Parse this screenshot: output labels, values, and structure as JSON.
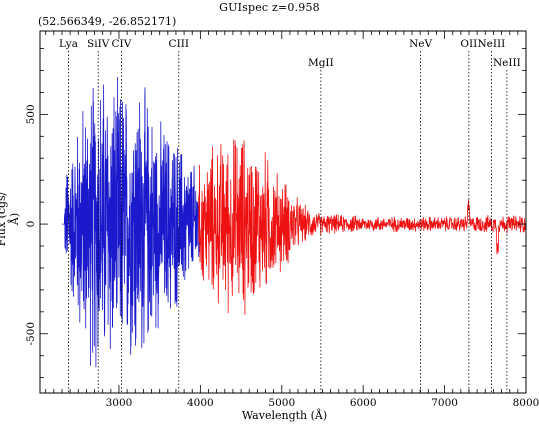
{
  "app": {
    "title": "GUIspec z=0.958",
    "coordinates": "(52.566349, -26.852171)"
  },
  "chart_data": {
    "type": "line",
    "title": "GUIspec z=0.958",
    "xlabel": "Wavelength (Å)",
    "ylabel": "Flux (cgs/Å)",
    "xlim": [
      2030,
      8000
    ],
    "ylim": [
      -770,
      880
    ],
    "x_ticks": [
      3000,
      4000,
      5000,
      6000,
      7000,
      8000
    ],
    "y_ticks": [
      -500,
      0,
      500
    ],
    "colors": {
      "blue_series": "#1a1acc",
      "red_series": "#ee1111",
      "axes": "#000000"
    },
    "series": [
      {
        "color_key": "blue_series",
        "x": [
          2330,
          2380,
          2450,
          2520,
          2600,
          2680,
          2750,
          2820,
          2900,
          2980,
          3050,
          3130,
          3200,
          3300,
          3400,
          3500,
          3600,
          3700,
          3800,
          3900,
          4000
        ],
        "amplitude": [
          150,
          400,
          420,
          600,
          650,
          750,
          780,
          780,
          780,
          700,
          760,
          650,
          780,
          700,
          600,
          520,
          500,
          450,
          380,
          320,
          260
        ]
      },
      {
        "color_key": "red_series",
        "x": [
          3980,
          4100,
          4200,
          4300,
          4400,
          4500,
          4600,
          4700,
          4800,
          4900,
          5000,
          5100,
          5200,
          5300,
          5400,
          5500,
          6000,
          6500,
          7000,
          7500,
          8000
        ],
        "amplitude": [
          300,
          380,
          420,
          450,
          460,
          500,
          440,
          400,
          380,
          300,
          250,
          200,
          130,
          90,
          70,
          55,
          40,
          40,
          40,
          45,
          50
        ]
      }
    ],
    "emission_lines": [
      {
        "label": "Lya",
        "x": 2380,
        "row": 1
      },
      {
        "label": "SiIV",
        "x": 2745,
        "row": 1
      },
      {
        "label": "CIV",
        "x": 3030,
        "row": 1
      },
      {
        "label": "CIII",
        "x": 3735,
        "row": 1
      },
      {
        "label": "MgII",
        "x": 5480,
        "row": 2
      },
      {
        "label": "NeV",
        "x": 6705,
        "row": 1
      },
      {
        "label": "OII",
        "x": 7298,
        "row": 1
      },
      {
        "label": "NeIII",
        "x": 7575,
        "row": 1
      },
      {
        "label": "NeIII",
        "x": 7765,
        "row": 2
      }
    ]
  }
}
